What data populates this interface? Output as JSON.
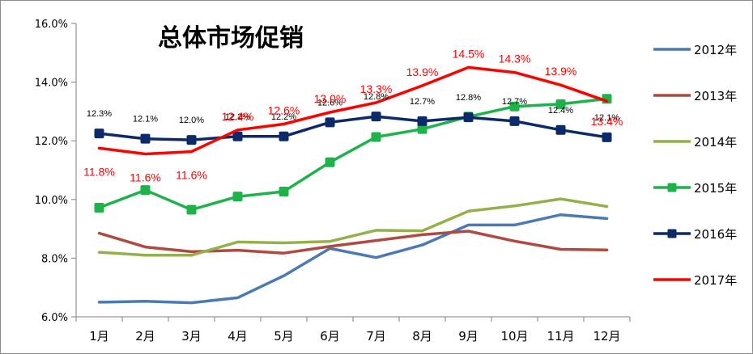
{
  "chart_data": {
    "type": "line",
    "title": "总体市场促销",
    "categories": [
      "1月",
      "2月",
      "3月",
      "4月",
      "5月",
      "6月",
      "7月",
      "8月",
      "9月",
      "10月",
      "11月",
      "12月"
    ],
    "ylim": [
      6.0,
      16.0
    ],
    "yticks": [
      "6.0%",
      "8.0%",
      "10.0%",
      "12.0%",
      "14.0%",
      "16.0%"
    ],
    "ytick_values": [
      6,
      8,
      10,
      12,
      14,
      16
    ],
    "grid": false,
    "legend_position": "right",
    "series": [
      {
        "name": "2012年",
        "color": "#4a7ab4",
        "marker": "none",
        "values": [
          6.5,
          6.53,
          6.48,
          6.65,
          7.4,
          8.33,
          8.02,
          8.45,
          9.13,
          9.13,
          9.48,
          9.35
        ]
      },
      {
        "name": "2013年",
        "color": "#b0493f",
        "marker": "none",
        "values": [
          8.85,
          8.38,
          8.22,
          8.27,
          8.17,
          8.4,
          8.6,
          8.8,
          8.92,
          8.58,
          8.3,
          8.28
        ]
      },
      {
        "name": "2014年",
        "color": "#93b04a",
        "marker": "none",
        "values": [
          8.2,
          8.1,
          8.1,
          8.55,
          8.52,
          8.57,
          8.95,
          8.93,
          9.6,
          9.78,
          10.02,
          9.76
        ]
      },
      {
        "name": "2015年",
        "color": "#1db34a",
        "marker": "square",
        "values": [
          9.72,
          10.32,
          9.65,
          10.1,
          10.27,
          11.27,
          12.13,
          12.4,
          12.82,
          13.17,
          13.25,
          13.43
        ]
      },
      {
        "name": "2016年",
        "color": "#0c2a6a",
        "marker": "square",
        "values": [
          12.25,
          12.07,
          12.03,
          12.15,
          12.15,
          12.63,
          12.83,
          12.67,
          12.8,
          12.67,
          12.37,
          12.12
        ],
        "labels": [
          "12.3%",
          "12.1%",
          "12.0%",
          "12.2%",
          "12.2%",
          "12.6%",
          "12.8%",
          "12.7%",
          "12.8%",
          "12.7%",
          "12.4%",
          "12.1%"
        ]
      },
      {
        "name": "2017年",
        "color": "#ff0000",
        "marker": "none",
        "values": [
          11.75,
          11.55,
          11.63,
          12.37,
          12.57,
          12.97,
          13.3,
          13.88,
          14.5,
          14.33,
          13.9,
          13.35
        ],
        "labels": [
          "11.8%",
          "11.6%",
          "11.6%",
          "12.4%",
          "12.6%",
          "13.0%",
          "13.3%",
          "13.9%",
          "14.5%",
          "14.3%",
          "13.9%",
          "13.4%"
        ]
      }
    ]
  }
}
